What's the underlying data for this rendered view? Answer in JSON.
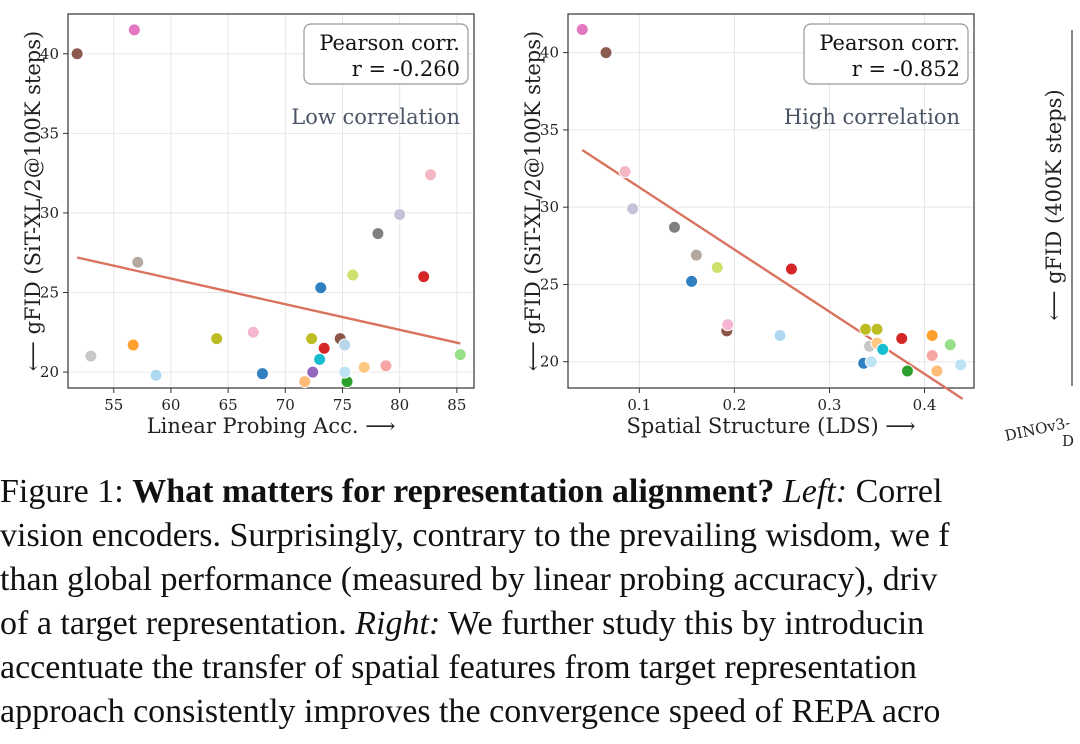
{
  "chart_data": [
    {
      "type": "scatter",
      "xlabel": "Linear Probing Acc. ⟶",
      "ylabel": "⟵ gFID (SiT-XL/2@100K steps)",
      "xlim": [
        51,
        86.5
      ],
      "ylim": [
        19,
        42.5
      ],
      "xticks": [
        "55",
        "60",
        "65",
        "70",
        "75",
        "80",
        "85"
      ],
      "xtick_values": [
        55,
        60,
        65,
        70,
        75,
        80,
        85
      ],
      "yticks": [
        "20",
        "25",
        "30",
        "35",
        "40"
      ],
      "ytick_values": [
        20,
        25,
        30,
        35,
        40
      ],
      "grid": true,
      "annotation_box": {
        "line1": "Pearson corr.",
        "line2": "r = -0.260"
      },
      "annotation_text": "Low correlation",
      "trend_line": {
        "x": [
          51.8,
          85.3
        ],
        "y": [
          27.2,
          21.8
        ],
        "color": "#d9735f"
      },
      "points": [
        {
          "x": 51.8,
          "y": 40.0,
          "color": "#8c5a4f"
        },
        {
          "x": 56.8,
          "y": 41.5,
          "color": "#e377c2"
        },
        {
          "x": 57.1,
          "y": 26.9,
          "color": "#b3a9a0"
        },
        {
          "x": 53.0,
          "y": 21.0,
          "color": "#c7c7c7"
        },
        {
          "x": 56.7,
          "y": 21.7,
          "color": "#ff9f2e"
        },
        {
          "x": 58.7,
          "y": 19.8,
          "color": "#aed8ef"
        },
        {
          "x": 64.0,
          "y": 22.1,
          "color": "#bcbd22"
        },
        {
          "x": 67.2,
          "y": 22.5,
          "color": "#f6b6d2"
        },
        {
          "x": 68.0,
          "y": 19.9,
          "color": "#2f7fc1"
        },
        {
          "x": 71.7,
          "y": 19.4,
          "color": "#ffbb78"
        },
        {
          "x": 72.3,
          "y": 22.1,
          "color": "#bcbd22"
        },
        {
          "x": 72.4,
          "y": 20.0,
          "color": "#9467bd"
        },
        {
          "x": 73.0,
          "y": 20.8,
          "color": "#17becf"
        },
        {
          "x": 73.1,
          "y": 25.3,
          "color": "#2f7fc1"
        },
        {
          "x": 73.4,
          "y": 21.5,
          "color": "#d62728"
        },
        {
          "x": 74.8,
          "y": 22.1,
          "color": "#8c564b"
        },
        {
          "x": 75.2,
          "y": 21.7,
          "color": "#b9d7ea"
        },
        {
          "x": 75.4,
          "y": 19.4,
          "color": "#2ca02c"
        },
        {
          "x": 75.2,
          "y": 20.0,
          "color": "#bde3f5"
        },
        {
          "x": 75.9,
          "y": 26.1,
          "color": "#cfe06c"
        },
        {
          "x": 76.9,
          "y": 20.3,
          "color": "#ffc882"
        },
        {
          "x": 78.1,
          "y": 28.7,
          "color": "#7f7f7f"
        },
        {
          "x": 78.8,
          "y": 20.4,
          "color": "#f7a6a6"
        },
        {
          "x": 80.0,
          "y": 29.9,
          "color": "#c5c1d9"
        },
        {
          "x": 82.1,
          "y": 26.0,
          "color": "#d62728"
        },
        {
          "x": 82.7,
          "y": 32.4,
          "color": "#f4b6c2"
        },
        {
          "x": 85.3,
          "y": 21.1,
          "color": "#98df8a"
        }
      ]
    },
    {
      "type": "scatter",
      "xlabel": "Spatial Structure (LDS) ⟶",
      "ylabel": "⟵ gFID (SiT-XL/2@100K steps)",
      "xlim": [
        0.025,
        0.452
      ],
      "ylim": [
        18.3,
        42.5
      ],
      "xticks": [
        "0.1",
        "0.2",
        "0.3",
        "0.4"
      ],
      "xtick_values": [
        0.1,
        0.2,
        0.3,
        0.4
      ],
      "yticks": [
        "20",
        "25",
        "30",
        "35",
        "40"
      ],
      "ytick_values": [
        20,
        25,
        30,
        35,
        40
      ],
      "grid": true,
      "annotation_box": {
        "line1": "Pearson corr.",
        "line2": "r = -0.852"
      },
      "annotation_text": "High correlation",
      "trend_line": {
        "x": [
          0.04,
          0.44
        ],
        "y": [
          33.7,
          17.6
        ],
        "color": "#d9735f"
      },
      "points": [
        {
          "x": 0.04,
          "y": 41.5,
          "color": "#e377c2"
        },
        {
          "x": 0.065,
          "y": 40.0,
          "color": "#8c5a4f"
        },
        {
          "x": 0.085,
          "y": 32.3,
          "color": "#f4b6c2"
        },
        {
          "x": 0.093,
          "y": 29.9,
          "color": "#c5c1d9"
        },
        {
          "x": 0.137,
          "y": 28.7,
          "color": "#7f7f7f"
        },
        {
          "x": 0.16,
          "y": 26.9,
          "color": "#b3a9a0"
        },
        {
          "x": 0.155,
          "y": 25.2,
          "color": "#2f7fc1"
        },
        {
          "x": 0.182,
          "y": 26.1,
          "color": "#cfe06c"
        },
        {
          "x": 0.192,
          "y": 22.0,
          "color": "#8c564b"
        },
        {
          "x": 0.193,
          "y": 22.4,
          "color": "#f6b6d2"
        },
        {
          "x": 0.26,
          "y": 26.0,
          "color": "#d62728"
        },
        {
          "x": 0.248,
          "y": 21.7,
          "color": "#aed8ef"
        },
        {
          "x": 0.336,
          "y": 19.9,
          "color": "#2f7fc1"
        },
        {
          "x": 0.338,
          "y": 22.1,
          "color": "#bcbd22"
        },
        {
          "x": 0.342,
          "y": 21.0,
          "color": "#c7c7c7"
        },
        {
          "x": 0.344,
          "y": 20.0,
          "color": "#bde3f5"
        },
        {
          "x": 0.35,
          "y": 22.1,
          "color": "#bcbd22"
        },
        {
          "x": 0.35,
          "y": 21.2,
          "color": "#ffc882"
        },
        {
          "x": 0.356,
          "y": 20.8,
          "color": "#17becf"
        },
        {
          "x": 0.376,
          "y": 21.5,
          "color": "#d62728"
        },
        {
          "x": 0.382,
          "y": 19.4,
          "color": "#2ca02c"
        },
        {
          "x": 0.408,
          "y": 21.7,
          "color": "#ff9f2e"
        },
        {
          "x": 0.408,
          "y": 20.4,
          "color": "#f7a6a6"
        },
        {
          "x": 0.413,
          "y": 19.4,
          "color": "#ffbb78"
        },
        {
          "x": 0.427,
          "y": 21.1,
          "color": "#98df8a"
        },
        {
          "x": 0.438,
          "y": 19.8,
          "color": "#bde3f5"
        }
      ]
    }
  ],
  "partial_third_panel": {
    "ylabel": "⟵ gFID (400K steps)",
    "xtick_fragment_1": "DINOv3-",
    "xtick_fragment_2": "D"
  },
  "caption": {
    "line1_label": "Figure 1: ",
    "line1_bold": "What matters for representation alignment?",
    "line1_italic": " Left:",
    "line1_rest": " Correl",
    "line2": "vision encoders. Surprisingly, contrary to the prevailing wisdom, we f",
    "line3": "than global performance (measured by linear probing accuracy), driv",
    "line4_start": "of a target representation. ",
    "line4_italic": "Right:",
    "line4_rest": " We further study this by introducin",
    "line5": "accentuate the transfer of spatial features from target representation",
    "line6": "approach consistently improves the convergence speed of REPA acro"
  },
  "colors": {
    "axis": "#333333",
    "grid": "#e6e6e6",
    "annotation_text": "#4a5566",
    "box_border": "#999999"
  }
}
